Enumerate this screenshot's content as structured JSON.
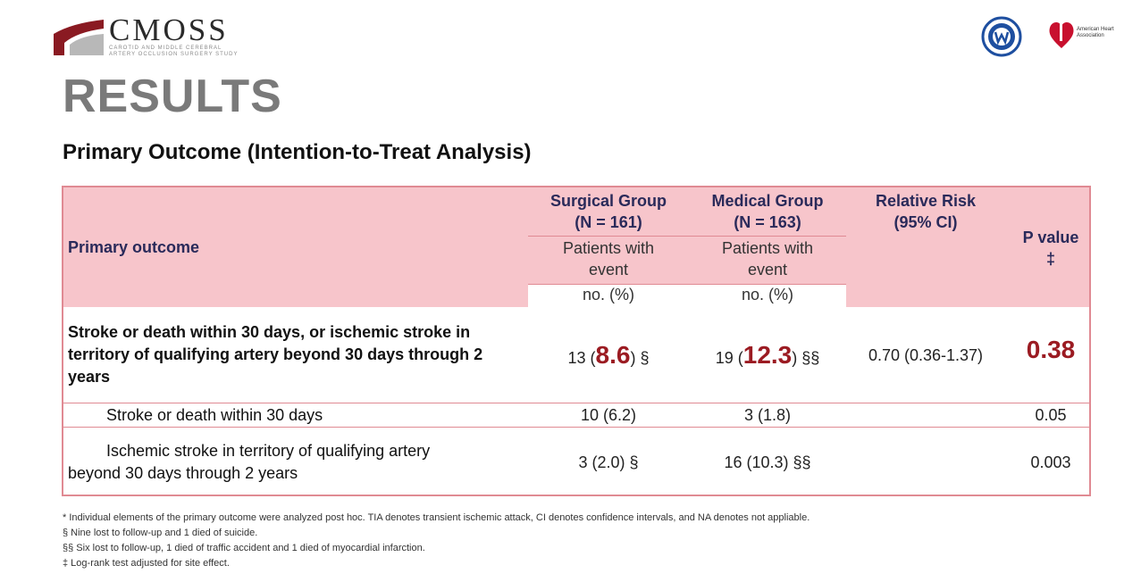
{
  "header": {
    "logo_text": "CMOSS",
    "logo_subtitle_line1": "CAROTID AND MIDDLE CEREBRAL",
    "logo_subtitle_line2": "ARTERY OCCLUSION SURGERY STUDY",
    "aha_text": "American Heart Association"
  },
  "title": "RESULTS",
  "subtitle": "Primary Outcome (Intention-to-Treat Analysis)",
  "table": {
    "col_primary": "Primary outcome",
    "col_surgical_line1": "Surgical Group",
    "col_surgical_line2": "(N = 161)",
    "col_medical_line1": "Medical Group",
    "col_medical_line2": "(N = 163)",
    "col_rr_line1": "Relative Risk",
    "col_rr_line2": "(95% CI)",
    "col_p_line1": "P value",
    "col_p_line2": "‡",
    "patients_line1": "Patients with",
    "patients_line2": "event",
    "units": "no. (%)",
    "rows": [
      {
        "label": "Stroke or death within 30 days, or ischemic stroke in territory of qualifying artery beyond 30 days through 2 years",
        "surg_n": "13 (",
        "surg_pct": "8.6",
        "surg_suffix": ") §",
        "med_n": "19 (",
        "med_pct": "12.3",
        "med_suffix": ") §§",
        "rr": "0.70 (0.36-1.37)",
        "p": "0.38"
      },
      {
        "label": "Stroke or death within 30 days",
        "surgical": "10 (6.2)",
        "medical": "3 (1.8)",
        "rr": "",
        "p": "0.05"
      },
      {
        "label_line1": "Ischemic stroke in territory of qualifying artery",
        "label_line2": "beyond 30 days through 2 years",
        "surgical": "3 (2.0) §",
        "medical": "16 (10.3) §§",
        "rr": "",
        "p": "0.003"
      }
    ]
  },
  "footnotes": [
    "* Individual elements of the primary outcome were analyzed post hoc. TIA denotes transient ischemic attack, CI denotes confidence intervals, and NA denotes not appliable.",
    "§ Nine lost to follow-up and 1 died of suicide.",
    "§§ Six lost to follow-up, 1 died of traffic accident and 1 died of myocardial infarction.",
    "‡ Log-rank test adjusted for site effect."
  ],
  "colors": {
    "header_bg": "#f7c5cb",
    "border": "#e08a93",
    "accent": "#9b1b22",
    "title": "#7a7a7a"
  }
}
